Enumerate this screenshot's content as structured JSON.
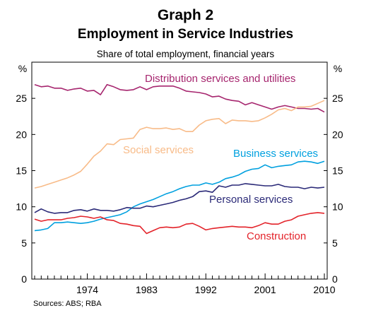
{
  "header": {
    "title": "Graph 2",
    "subtitle": "Employment in Service Industries",
    "caption": "Share of total employment, financial years"
  },
  "footer": {
    "source": "Sources: ABS; RBA"
  },
  "chart_data": {
    "type": "line",
    "title": "Graph 2",
    "subtitle": "Employment in Service Industries",
    "ylabel_left": "%",
    "ylabel_right": "%",
    "ylim": [
      0,
      30
    ],
    "y_ticks": [
      0,
      5,
      10,
      15,
      20,
      25
    ],
    "x_tick_labels": [
      1974,
      1983,
      1992,
      2001,
      2010
    ],
    "x_range": [
      1966,
      2010
    ],
    "grid": false,
    "legend": "inline labels",
    "x": [
      1966,
      1967,
      1968,
      1969,
      1970,
      1971,
      1972,
      1973,
      1974,
      1975,
      1976,
      1977,
      1978,
      1979,
      1980,
      1981,
      1982,
      1983,
      1984,
      1985,
      1986,
      1987,
      1988,
      1989,
      1990,
      1991,
      1992,
      1993,
      1994,
      1995,
      1996,
      1997,
      1998,
      1999,
      2000,
      2001,
      2002,
      2003,
      2004,
      2005,
      2006,
      2007,
      2008,
      2009,
      2010
    ],
    "series": [
      {
        "name": "Distribution services and utilities",
        "color": "#a6256e",
        "values": [
          26.9,
          26.6,
          26.7,
          26.4,
          26.4,
          26.1,
          26.3,
          26.4,
          26.0,
          26.1,
          25.5,
          26.9,
          26.6,
          26.2,
          26.1,
          26.2,
          26.6,
          26.2,
          26.6,
          26.7,
          26.7,
          26.7,
          26.4,
          26.0,
          25.9,
          25.8,
          25.6,
          25.2,
          25.3,
          24.9,
          24.7,
          24.6,
          24.1,
          24.4,
          24.1,
          23.8,
          23.5,
          23.8,
          24.0,
          23.8,
          23.6,
          23.6,
          23.5,
          23.6,
          23.1
        ]
      },
      {
        "name": "Social services",
        "color": "#f8bb88",
        "values": [
          12.6,
          12.8,
          13.1,
          13.4,
          13.7,
          14.0,
          14.4,
          14.9,
          15.9,
          17.0,
          17.7,
          18.7,
          18.6,
          19.3,
          19.4,
          19.5,
          20.7,
          21.0,
          20.8,
          20.8,
          20.9,
          20.7,
          20.8,
          20.4,
          20.4,
          21.3,
          21.9,
          22.1,
          22.2,
          21.5,
          22.0,
          21.9,
          21.9,
          21.8,
          21.9,
          22.3,
          22.8,
          23.4,
          23.6,
          23.3,
          23.8,
          23.8,
          23.9,
          24.3,
          24.7
        ]
      },
      {
        "name": "Business services",
        "color": "#00a0df",
        "values": [
          6.7,
          6.8,
          7.0,
          7.8,
          7.8,
          7.9,
          7.8,
          7.7,
          7.8,
          8.0,
          8.3,
          8.5,
          8.7,
          8.9,
          9.3,
          10.0,
          10.4,
          10.7,
          11.0,
          11.4,
          11.8,
          12.1,
          12.5,
          12.8,
          13.0,
          13.0,
          13.3,
          13.1,
          13.4,
          13.9,
          14.1,
          14.4,
          14.9,
          15.2,
          15.3,
          15.8,
          15.4,
          15.6,
          15.7,
          15.8,
          16.2,
          16.3,
          16.2,
          16.0,
          16.3
        ]
      },
      {
        "name": "Personal services",
        "color": "#2b2a78",
        "values": [
          9.2,
          9.7,
          9.3,
          9.1,
          9.2,
          9.2,
          9.5,
          9.6,
          9.4,
          9.7,
          9.5,
          9.5,
          9.4,
          9.6,
          9.9,
          9.8,
          9.8,
          10.1,
          10.0,
          10.2,
          10.4,
          10.6,
          10.9,
          11.1,
          11.4,
          12.1,
          12.2,
          12.0,
          12.9,
          12.7,
          13.0,
          13.0,
          13.2,
          13.1,
          13.0,
          12.9,
          12.9,
          13.1,
          12.8,
          12.7,
          12.7,
          12.5,
          12.7,
          12.6,
          12.7
        ]
      },
      {
        "name": "Construction",
        "color": "#e3232a",
        "values": [
          8.3,
          8.0,
          8.2,
          8.2,
          8.2,
          8.4,
          8.5,
          8.7,
          8.6,
          8.4,
          8.6,
          8.2,
          8.1,
          7.7,
          7.6,
          7.4,
          7.3,
          6.3,
          6.7,
          7.1,
          7.2,
          7.1,
          7.2,
          7.6,
          7.7,
          7.3,
          6.8,
          7.0,
          7.1,
          7.2,
          7.3,
          7.2,
          7.2,
          7.1,
          7.4,
          7.8,
          7.6,
          7.6,
          8.0,
          8.2,
          8.7,
          8.9,
          9.1,
          9.2,
          9.1
        ]
      }
    ]
  }
}
